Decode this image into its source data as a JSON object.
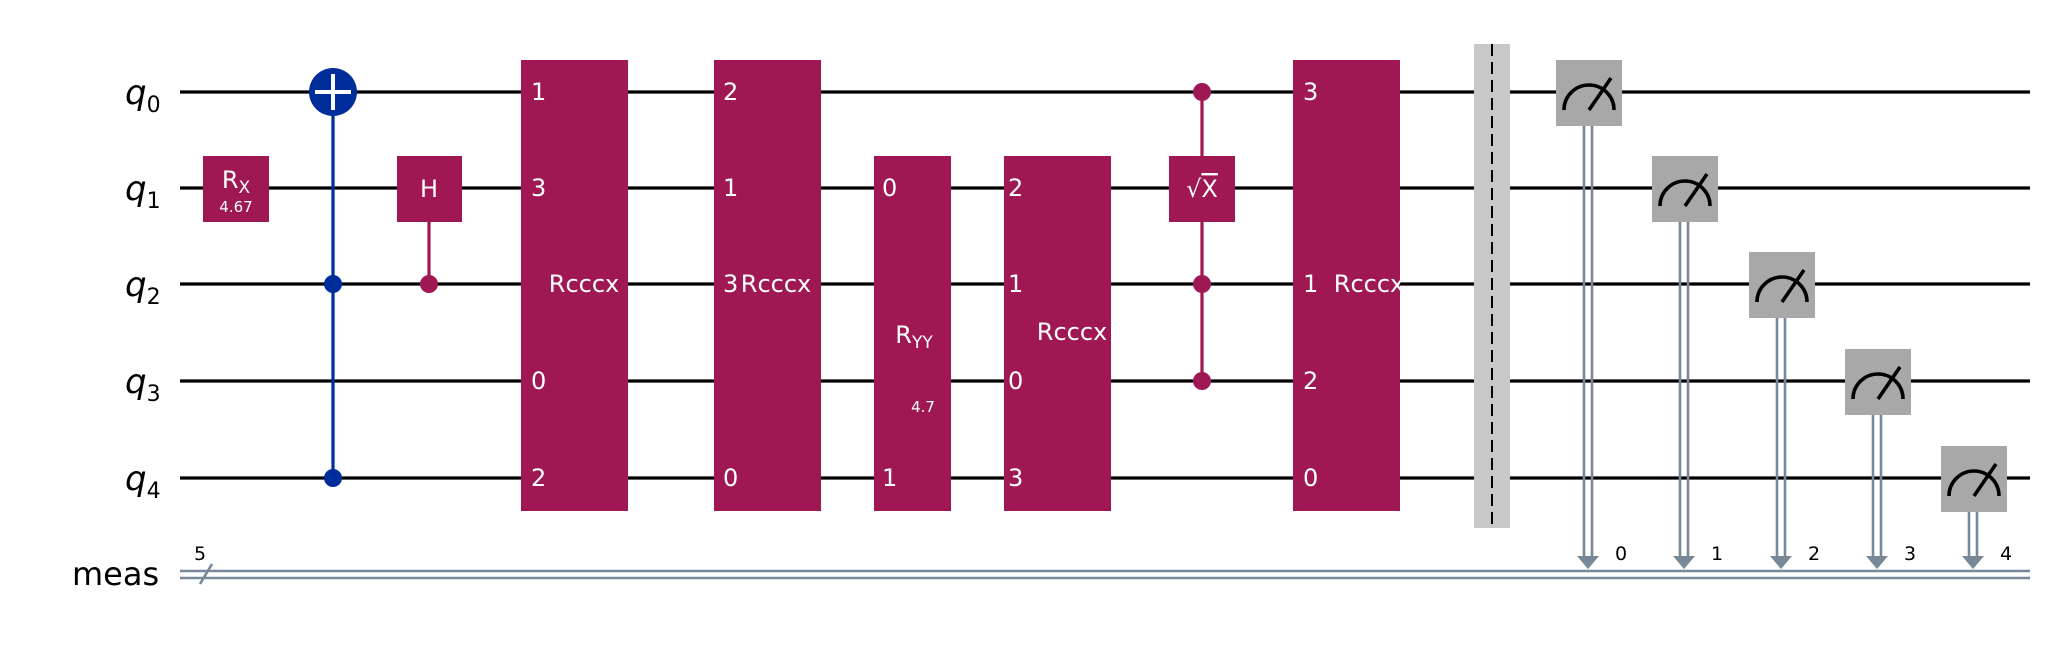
{
  "colors": {
    "wire": "#000000",
    "classical": "#778899",
    "ibm_blue": "#002D9C",
    "gate_magenta": "#9F1853",
    "measure_gray": "#A8A8A8",
    "barrier_gray": "#C8C8C8"
  },
  "qubits": [
    {
      "name": "q",
      "index": "0"
    },
    {
      "name": "q",
      "index": "1"
    },
    {
      "name": "q",
      "index": "2"
    },
    {
      "name": "q",
      "index": "3"
    },
    {
      "name": "q",
      "index": "4"
    }
  ],
  "classical_register": {
    "name": "meas",
    "size": "5"
  },
  "gates": {
    "rx": {
      "label": "R",
      "sub": "X",
      "param": "4.67"
    },
    "h": {
      "label": "H"
    },
    "rcccx1": {
      "label": "Rcccx",
      "pins": [
        "1",
        "3",
        "0",
        "2"
      ]
    },
    "rcccx2": {
      "label": "Rcccx",
      "pins": [
        "2",
        "1",
        "3",
        "0"
      ]
    },
    "ryy": {
      "label": "R",
      "sub": "YY",
      "param": "4.7",
      "pins": [
        "0",
        "1"
      ]
    },
    "rcccx3": {
      "label": "Rcccx",
      "pins": [
        "2",
        "1",
        "0",
        "3"
      ]
    },
    "csx": {
      "label": "√X",
      "radical": "√",
      "x": "X"
    },
    "rcccx4": {
      "label": "Rcccx",
      "pins": [
        "3",
        "1",
        "2",
        "0"
      ]
    }
  },
  "measure_bits": [
    "0",
    "1",
    "2",
    "3",
    "4"
  ]
}
